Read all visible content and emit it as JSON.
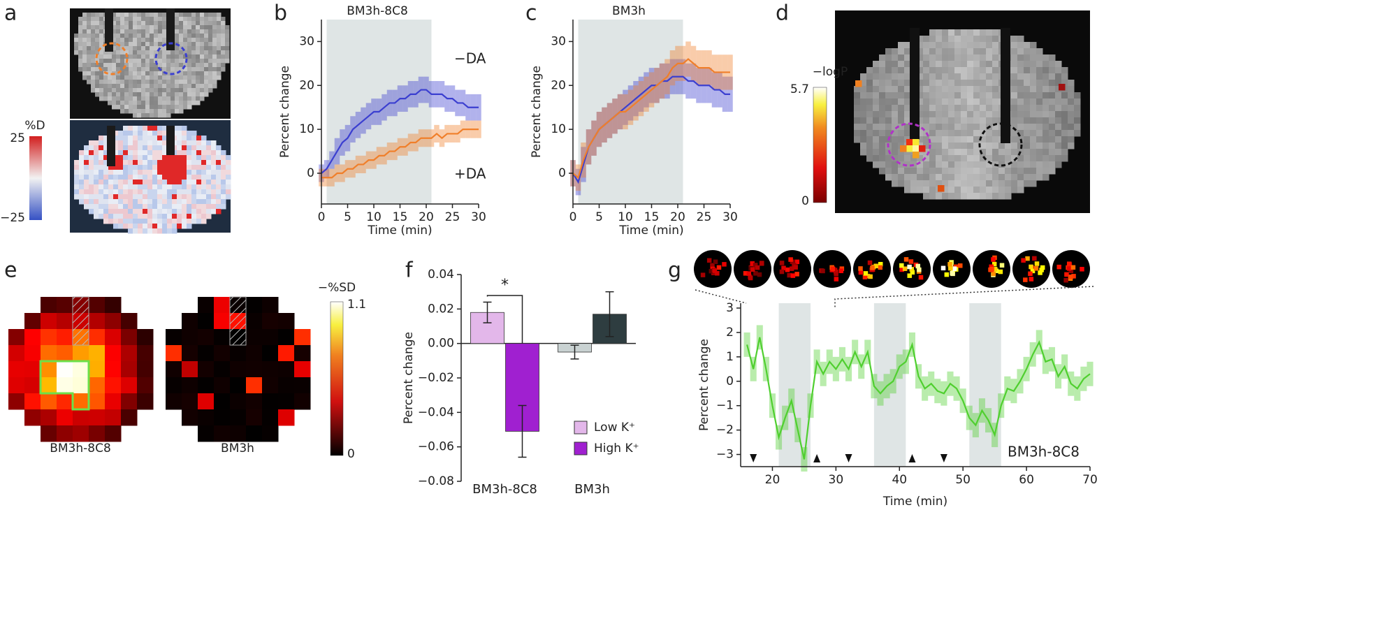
{
  "figure": {
    "panel_labels": [
      "a",
      "b",
      "c",
      "d",
      "e",
      "f",
      "g"
    ]
  },
  "panel_a": {
    "colorbar_label": "%D",
    "colorbar_ticks": [
      25,
      {
        "value": -25,
        "label": "−25"
      }
    ]
  },
  "panel_d": {
    "colorbar_label": "−logP",
    "colorbar_ticks": [
      5.7,
      0
    ]
  },
  "panel_e": {
    "labels": [
      "BM3h-8C8",
      "BM3h"
    ],
    "label_colors": [
      "#b032c8",
      "#222222"
    ],
    "colorbar_label": "−%SD",
    "colorbar_ticks": [
      1.1,
      0
    ]
  },
  "chart_data": [
    {
      "type": "line",
      "title": "BM3h-8C8",
      "title_color": "#b032c8",
      "xlabel": "Time (min)",
      "ylabel": "Percent change",
      "x": [
        0,
        1,
        2,
        3,
        4,
        5,
        6,
        7,
        8,
        9,
        10,
        11,
        12,
        13,
        14,
        15,
        16,
        17,
        18,
        19,
        20,
        21,
        22,
        23,
        24,
        25,
        26,
        27,
        28,
        29,
        30
      ],
      "series": [
        {
          "name": "−DA",
          "color": "#3b3fd0",
          "values": [
            0,
            1,
            3,
            5,
            7,
            8,
            10,
            11,
            12,
            13,
            14,
            14,
            15,
            16,
            16,
            17,
            17,
            18,
            18,
            19,
            19,
            18,
            18,
            18,
            17,
            17,
            16,
            16,
            15,
            15,
            15
          ],
          "error": [
            2,
            2,
            2,
            3,
            3,
            3,
            3,
            3,
            3,
            3,
            3,
            3,
            3,
            3,
            3,
            3,
            3,
            3,
            3,
            3,
            3,
            3,
            3,
            3,
            3,
            3,
            3,
            3,
            3,
            3,
            3
          ]
        },
        {
          "name": "+DA",
          "color": "#f07f2a",
          "values": [
            -1,
            -1,
            -1,
            0,
            0,
            1,
            1,
            2,
            2,
            3,
            3,
            4,
            4,
            5,
            5,
            6,
            6,
            7,
            7,
            8,
            8,
            8,
            9,
            8,
            9,
            9,
            9,
            10,
            10,
            10,
            10
          ],
          "error": [
            2,
            2,
            2,
            2,
            2,
            2,
            2,
            2,
            2,
            2,
            2,
            2,
            2,
            2,
            2,
            2,
            2,
            2,
            2,
            2,
            2,
            2,
            2,
            2,
            2,
            2,
            2,
            2,
            2,
            2,
            2
          ]
        }
      ],
      "shade": [
        1,
        21
      ],
      "xlim": [
        0,
        30
      ],
      "xticks": [
        0,
        5,
        10,
        15,
        20,
        25,
        30
      ],
      "ylim": [
        -7,
        35
      ],
      "yticks": [
        0,
        10,
        20,
        30
      ]
    },
    {
      "type": "line",
      "title": "BM3h",
      "title_color": "#222222",
      "xlabel": "Time (min)",
      "ylabel": "Percent change",
      "x": [
        0,
        1,
        2,
        3,
        4,
        5,
        6,
        7,
        8,
        9,
        10,
        11,
        12,
        13,
        14,
        15,
        16,
        17,
        18,
        19,
        20,
        21,
        22,
        23,
        24,
        25,
        26,
        27,
        28,
        29,
        30
      ],
      "series": [
        {
          "color": "#3b3fd0",
          "values": [
            0,
            -2,
            2,
            6,
            8,
            10,
            11,
            12,
            13,
            14,
            15,
            16,
            17,
            18,
            19,
            20,
            20,
            21,
            21,
            22,
            22,
            22,
            21,
            21,
            20,
            20,
            20,
            19,
            19,
            18,
            18
          ],
          "error": [
            3,
            3,
            4,
            4,
            4,
            4,
            4,
            4,
            4,
            4,
            4,
            4,
            4,
            4,
            4,
            4,
            4,
            4,
            4,
            4,
            4,
            4,
            4,
            4,
            4,
            4,
            4,
            4,
            4,
            4,
            4
          ]
        },
        {
          "color": "#f07f2a",
          "values": [
            0,
            -1,
            3,
            6,
            8,
            10,
            11,
            12,
            13,
            14,
            14,
            15,
            16,
            17,
            18,
            19,
            20,
            21,
            22,
            24,
            25,
            25,
            26,
            25,
            24,
            24,
            24,
            23,
            23,
            23,
            23
          ],
          "error": [
            3,
            3,
            4,
            4,
            4,
            4,
            4,
            4,
            4,
            4,
            4,
            4,
            4,
            4,
            4,
            4,
            4,
            4,
            4,
            4,
            4,
            4,
            4,
            4,
            4,
            4,
            4,
            4,
            4,
            4,
            4
          ]
        }
      ],
      "shade": [
        1,
        21
      ],
      "xlim": [
        0,
        30
      ],
      "xticks": [
        0,
        5,
        10,
        15,
        20,
        25,
        30
      ],
      "ylim": [
        -7,
        35
      ],
      "yticks": [
        0,
        10,
        20,
        30
      ]
    },
    {
      "type": "bar",
      "ylabel": "Percent change",
      "categories": [
        "BM3h-8C8",
        "BM3h"
      ],
      "category_colors": [
        "#b032c8",
        "#222222"
      ],
      "series": [
        {
          "name": "Low K⁺",
          "color": "#e3b7ea",
          "colors": [
            "#e3b7ea",
            "#c9d2d2"
          ],
          "values": [
            0.018,
            -0.005
          ],
          "error": [
            0.006,
            0.004
          ]
        },
        {
          "name": "High K⁺",
          "color": "#a020d0",
          "colors": [
            "#a020d0",
            "#2e3d40"
          ],
          "values": [
            -0.051,
            0.017
          ],
          "error": [
            0.015,
            0.013
          ]
        }
      ],
      "annotation": "*",
      "ylim": [
        -0.08,
        0.04
      ],
      "yticks": [
        0.04,
        0.02,
        {
          "value": 0,
          "label": "0.00"
        },
        {
          "value": -0.02,
          "label": "−0.02"
        },
        {
          "value": -0.04,
          "label": "−0.04"
        },
        {
          "value": -0.06,
          "label": "−0.06"
        },
        {
          "value": -0.08,
          "label": "−0.08"
        }
      ]
    },
    {
      "type": "line",
      "xlabel": "Time (min)",
      "ylabel": "Percent change",
      "label": "BM3h-8C8",
      "label_color": "#b032c8",
      "x": [
        16,
        17,
        18,
        19,
        20,
        21,
        22,
        23,
        24,
        25,
        26,
        27,
        28,
        29,
        30,
        31,
        32,
        33,
        34,
        35,
        36,
        37,
        38,
        39,
        40,
        41,
        42,
        43,
        44,
        45,
        46,
        47,
        48,
        49,
        50,
        51,
        52,
        53,
        54,
        55,
        56,
        57,
        58,
        59,
        60,
        61,
        62,
        63,
        64,
        65,
        66,
        67,
        68,
        69,
        70
      ],
      "series": [
        {
          "color": "#4fcf2f",
          "values": [
            1.5,
            0.5,
            1.8,
            0.5,
            -1,
            -2.3,
            -1.5,
            -0.8,
            -2,
            -3.2,
            -1,
            0.8,
            0.3,
            0.8,
            0.5,
            0.9,
            0.5,
            1.2,
            0.6,
            1.2,
            -0.2,
            -0.5,
            -0.2,
            0,
            0.6,
            0.8,
            1.5,
            0.2,
            -0.3,
            -0.1,
            -0.4,
            -0.5,
            -0.1,
            -0.3,
            -0.8,
            -1.5,
            -1.8,
            -1.2,
            -1.6,
            -2.2,
            -1,
            -0.3,
            -0.4,
            0,
            0.5,
            1.1,
            1.6,
            0.8,
            0.9,
            0.2,
            0.6,
            -0.1,
            -0.3,
            0.1,
            0.3
          ],
          "error": [
            0.5,
            0.5,
            0.5,
            0.5,
            0.5,
            0.5,
            0.5,
            0.5,
            0.5,
            0.5,
            0.5,
            0.5,
            0.5,
            0.5,
            0.5,
            0.5,
            0.5,
            0.5,
            0.5,
            0.5,
            0.5,
            0.5,
            0.5,
            0.5,
            0.5,
            0.5,
            0.5,
            0.5,
            0.5,
            0.5,
            0.5,
            0.5,
            0.5,
            0.5,
            0.5,
            0.5,
            0.5,
            0.5,
            0.5,
            0.5,
            0.5,
            0.5,
            0.5,
            0.5,
            0.5,
            0.5,
            0.5,
            0.5,
            0.5,
            0.5,
            0.5,
            0.5,
            0.5,
            0.5,
            0.5
          ]
        }
      ],
      "shades": [
        [
          21,
          26
        ],
        [
          36,
          41
        ],
        [
          51,
          56
        ]
      ],
      "arrows_down": [
        17,
        32,
        47
      ],
      "arrows_up": [
        27,
        42
      ],
      "xlim": [
        15,
        70
      ],
      "xticks": [
        20,
        30,
        40,
        50,
        60,
        70
      ],
      "ylim": [
        -3.5,
        3.2
      ],
      "yticks": [
        {
          "value": -3,
          "label": "−3"
        },
        {
          "value": -2,
          "label": "−2"
        },
        {
          "value": -1,
          "label": "−1"
        },
        0,
        1,
        2,
        3
      ]
    }
  ]
}
